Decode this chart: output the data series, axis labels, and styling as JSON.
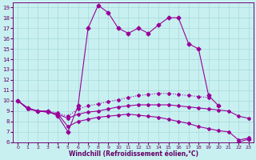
{
  "bg_color": "#c8f0f0",
  "grid_color": "#a8d8d8",
  "line_color": "#990099",
  "xlabel": "Windchill (Refroidissement éolien,°C)",
  "xlim": [
    -0.5,
    23.5
  ],
  "ylim": [
    6,
    19.5
  ],
  "xticks": [
    0,
    1,
    2,
    3,
    4,
    5,
    6,
    7,
    8,
    9,
    10,
    11,
    12,
    13,
    14,
    15,
    16,
    17,
    18,
    19,
    20,
    21,
    22,
    23
  ],
  "yticks": [
    6,
    7,
    8,
    9,
    10,
    11,
    12,
    13,
    14,
    15,
    16,
    17,
    18,
    19
  ],
  "lines": [
    {
      "y": [
        10,
        9.3,
        9.0,
        9.0,
        8.5,
        7.0,
        9.5,
        17.0,
        19.2,
        18.5,
        17.0,
        16.5,
        17.0,
        16.5,
        17.3,
        18.0,
        18.0,
        15.5,
        15.0,
        10.5,
        9.5,
        null,
        6.0,
        6.3
      ],
      "ls": "-",
      "marker": "D",
      "ms": 2.5
    },
    {
      "y": [
        10,
        9.3,
        9.0,
        9.0,
        8.8,
        8.5,
        9.2,
        9.5,
        9.7,
        9.9,
        10.1,
        10.3,
        10.5,
        10.6,
        10.7,
        10.7,
        10.6,
        10.5,
        10.4,
        10.3,
        null,
        null,
        null,
        null
      ],
      "ls": ":",
      "marker": "D",
      "ms": 2.0
    },
    {
      "y": [
        10,
        9.2,
        9.0,
        8.9,
        8.7,
        8.3,
        8.7,
        8.9,
        9.0,
        9.2,
        9.4,
        9.5,
        9.6,
        9.6,
        9.6,
        9.6,
        9.5,
        9.4,
        9.3,
        9.2,
        9.1,
        9.0,
        8.5,
        8.3
      ],
      "ls": "-",
      "marker": "D",
      "ms": 2.0
    },
    {
      "y": [
        10,
        9.2,
        9.0,
        8.9,
        8.7,
        7.5,
        8.0,
        8.2,
        8.4,
        8.5,
        8.6,
        8.7,
        8.6,
        8.5,
        8.4,
        8.2,
        8.0,
        7.8,
        7.5,
        7.3,
        7.1,
        7.0,
        6.2,
        6.4
      ],
      "ls": "-",
      "marker": "D",
      "ms": 2.0
    }
  ]
}
